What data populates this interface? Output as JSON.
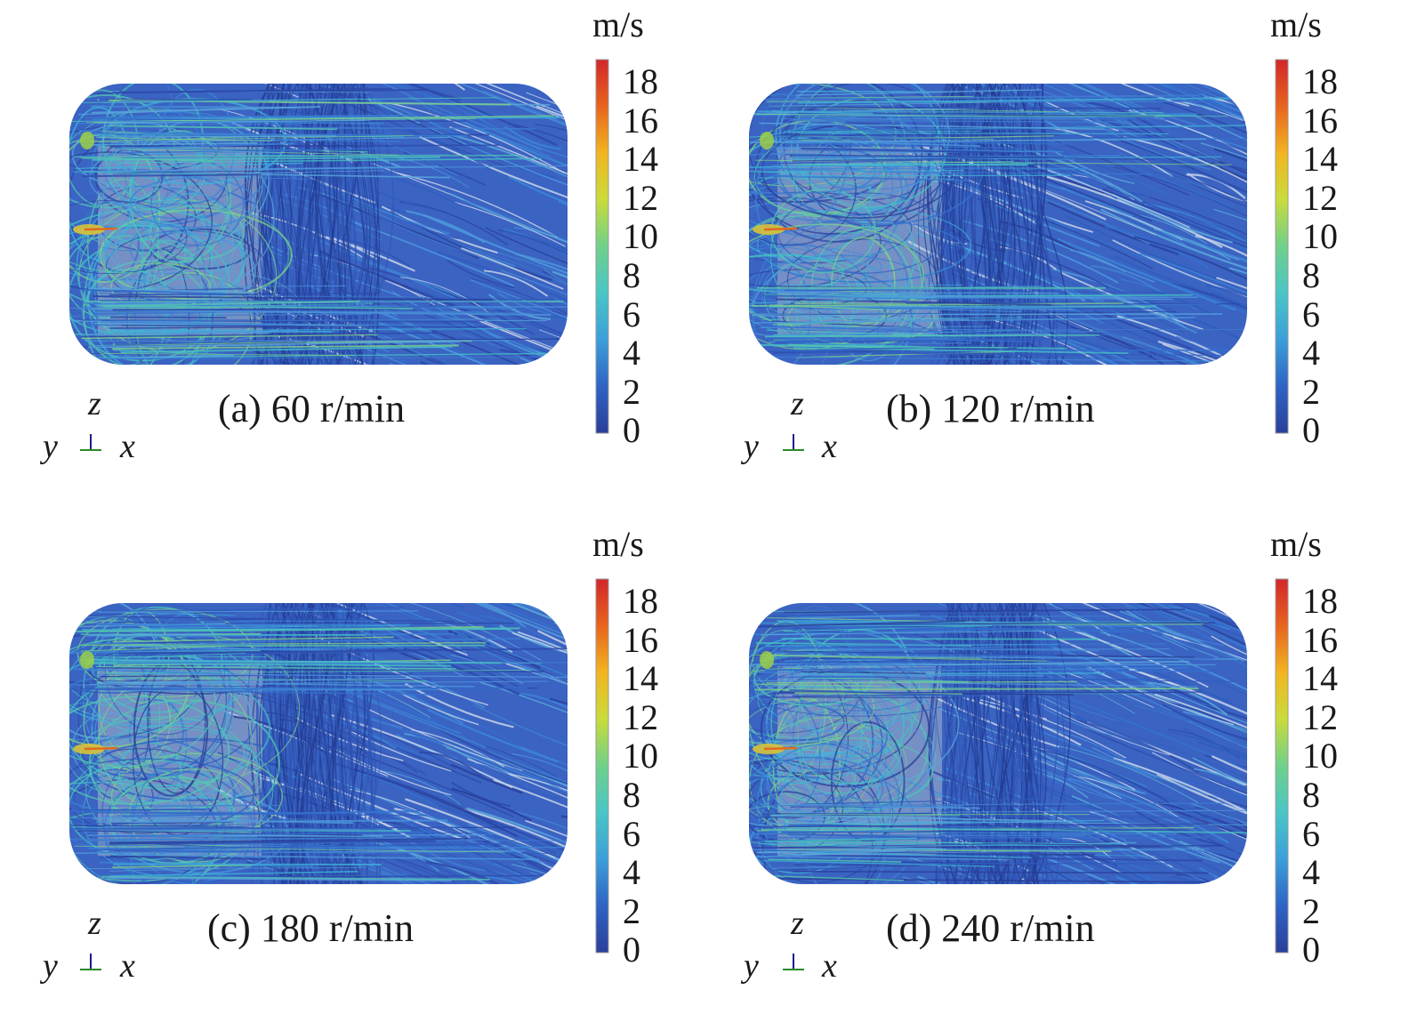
{
  "colorbar": {
    "unit": "m/s",
    "ticks": [
      "18",
      "16",
      "14",
      "12",
      "10",
      "8",
      "6",
      "4",
      "2",
      "0"
    ],
    "colors": [
      "#2a3f9a",
      "#2f63c4",
      "#3b9fd9",
      "#49c6c6",
      "#6fd08a",
      "#c9dc3a",
      "#f2b51f",
      "#e8641d",
      "#d2262a"
    ]
  },
  "axes": {
    "z": "z",
    "y": "y",
    "x": "x"
  },
  "panels": [
    {
      "caption": "(a) 60 r/min"
    },
    {
      "caption": "(b) 120 r/min"
    },
    {
      "caption": "(c) 180 r/min"
    },
    {
      "caption": "(d) 240 r/min"
    }
  ]
}
